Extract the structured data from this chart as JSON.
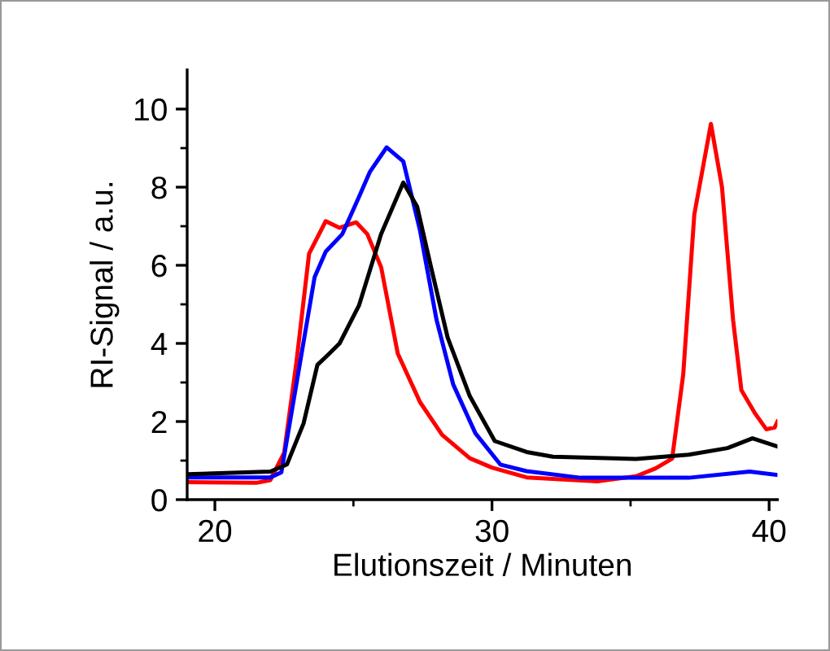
{
  "chart_data": {
    "type": "line",
    "xlabel": "Elutionszeit / Minuten",
    "ylabel": "RI-Signal / a.u.",
    "xlim": [
      19,
      40.3
    ],
    "ylim": [
      0,
      11
    ],
    "xticks": [
      20,
      {
        "value": 25,
        "label": null
      },
      30,
      {
        "value": 35,
        "label": null
      },
      40
    ],
    "yticks": [
      0,
      {
        "value": 1,
        "label": null
      },
      2,
      {
        "value": 3,
        "label": null
      },
      4,
      {
        "value": 5,
        "label": null
      },
      6,
      {
        "value": 7,
        "label": null
      },
      8,
      {
        "value": 9,
        "label": null
      },
      10
    ],
    "grid": false,
    "marker": "none",
    "line_style": "solid",
    "series": [
      {
        "color": "#ff0000",
        "x": [
          19,
          21.5,
          22.0,
          22.5,
          22.94,
          23.4,
          24.0,
          24.5,
          25.1,
          25.5,
          26.0,
          26.6,
          27.4,
          28.2,
          29.2,
          30.0,
          31.25,
          33.8,
          35.2,
          35.9,
          36.5,
          36.9,
          37.3,
          37.9,
          38.3,
          38.7,
          39.0,
          39.5,
          39.9,
          40.2,
          40.3
        ],
        "values": [
          0.45,
          0.43,
          0.5,
          1.2,
          3.5,
          6.3,
          7.13,
          6.96,
          7.1,
          6.8,
          5.95,
          3.74,
          2.5,
          1.66,
          1.06,
          0.82,
          0.57,
          0.47,
          0.6,
          0.8,
          1.05,
          3.2,
          7.3,
          9.62,
          8.0,
          4.6,
          2.8,
          2.2,
          1.8,
          1.85,
          2.0
        ]
      },
      {
        "color": "#0000ff",
        "x": [
          19,
          22.0,
          22.4,
          23.0,
          23.6,
          24.0,
          24.6,
          25.2,
          25.6,
          26.2,
          26.8,
          27.4,
          28.0,
          28.6,
          29.4,
          30.3,
          31.25,
          33.2,
          37.1,
          39.3,
          40.3
        ],
        "values": [
          0.57,
          0.57,
          0.7,
          3.2,
          5.7,
          6.35,
          6.8,
          7.75,
          8.4,
          9.02,
          8.66,
          6.9,
          4.6,
          2.95,
          1.7,
          0.9,
          0.73,
          0.56,
          0.56,
          0.72,
          0.63
        ]
      },
      {
        "color": "#000000",
        "x": [
          19,
          22.0,
          22.6,
          23.2,
          23.7,
          24.1,
          24.5,
          25.2,
          26.0,
          26.8,
          27.3,
          27.8,
          28.4,
          29.2,
          30.1,
          31.25,
          32.2,
          35.2,
          37.1,
          38.5,
          39.4,
          40.3
        ],
        "values": [
          0.65,
          0.72,
          0.9,
          1.95,
          3.45,
          3.72,
          4.0,
          4.97,
          6.8,
          8.12,
          7.5,
          5.95,
          4.15,
          2.65,
          1.5,
          1.22,
          1.1,
          1.04,
          1.15,
          1.32,
          1.57,
          1.36
        ]
      }
    ]
  }
}
